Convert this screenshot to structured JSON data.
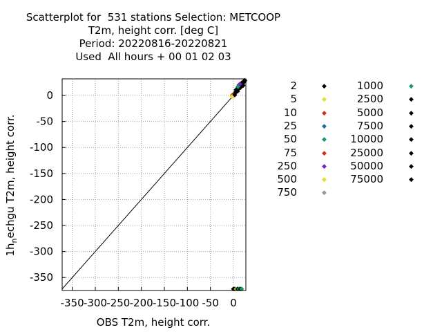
{
  "title_lines": [
    "Scatterplot for  531 stations Selection: METCOOP",
    "T2m, height corr. [deg C]",
    "Period: 20220816-20220821",
    "Used  All hours + 00 01 02 03"
  ],
  "chart_data": {
    "type": "scatter",
    "xlabel": "OBS T2m, height corr.",
    "ylabel_main": "1h",
    "ylabel_sub": "n",
    "ylabel_rest": "echgu T2m, height corr.",
    "xlim": [
      -372,
      27
    ],
    "ylim": [
      -375,
      32
    ],
    "x_ticks": [
      -350,
      -300,
      -250,
      -200,
      -150,
      -100,
      -50,
      0
    ],
    "x_tick_labels": [
      "-350",
      "-300",
      "-250",
      "-200",
      "-150",
      "-100",
      "-50",
      "0"
    ],
    "y_ticks": [
      0,
      -50,
      -100,
      -150,
      -200,
      -250,
      -300,
      -350
    ],
    "y_tick_labels": [
      "0",
      "-50",
      "-100",
      "-150",
      "-200",
      "-250",
      "-300",
      "-350"
    ],
    "grid": true,
    "diagonal": true,
    "legend_position": "right",
    "series": [
      {
        "name": "2",
        "color": "#000000"
      },
      {
        "name": "5",
        "color": "#e6e02a"
      },
      {
        "name": "10",
        "color": "#d22e1e"
      },
      {
        "name": "25",
        "color": "#1a6e96"
      },
      {
        "name": "50",
        "color": "#119c6c"
      },
      {
        "name": "75",
        "color": "#d22e1e"
      },
      {
        "name": "250",
        "color": "#7a1ec8"
      },
      {
        "name": "500",
        "color": "#e6e02a"
      },
      {
        "name": "750",
        "color": "#999999"
      },
      {
        "name": "1000",
        "color": "#119c6c"
      },
      {
        "name": "2500",
        "color": "#000000"
      },
      {
        "name": "5000",
        "color": "#000000"
      },
      {
        "name": "7500",
        "color": "#000000"
      },
      {
        "name": "10000",
        "color": "#000000"
      },
      {
        "name": "25000",
        "color": "#000000"
      },
      {
        "name": "50000",
        "color": "#000000"
      },
      {
        "name": "75000",
        "color": "#000000"
      }
    ],
    "points": [
      {
        "x": 0,
        "y": 0,
        "s": 2
      },
      {
        "x": 2,
        "y": 3,
        "s": 10
      },
      {
        "x": 4,
        "y": 5,
        "s": 0
      },
      {
        "x": 5,
        "y": 9,
        "s": 4
      },
      {
        "x": 6,
        "y": 7,
        "s": 0
      },
      {
        "x": 7,
        "y": 12,
        "s": 0
      },
      {
        "x": 8,
        "y": 10,
        "s": 0
      },
      {
        "x": 9,
        "y": 14,
        "s": 0
      },
      {
        "x": 10,
        "y": 12,
        "s": 0
      },
      {
        "x": 11,
        "y": 16,
        "s": 0
      },
      {
        "x": 12,
        "y": 14,
        "s": 0
      },
      {
        "x": 13,
        "y": 18,
        "s": 0
      },
      {
        "x": 14,
        "y": 16,
        "s": 0
      },
      {
        "x": 15,
        "y": 20,
        "s": 0
      },
      {
        "x": 16,
        "y": 18,
        "s": 3
      },
      {
        "x": 17,
        "y": 21,
        "s": 0
      },
      {
        "x": 18,
        "y": 19,
        "s": 0
      },
      {
        "x": 19,
        "y": 23,
        "s": 0
      },
      {
        "x": 20,
        "y": 21,
        "s": 0
      },
      {
        "x": 22,
        "y": 25,
        "s": 0
      },
      {
        "x": 24,
        "y": 27,
        "s": 0
      },
      {
        "x": 25,
        "y": 29,
        "s": 0
      },
      {
        "x": -2,
        "y": 1,
        "s": 5
      },
      {
        "x": -3,
        "y": -2,
        "s": 1
      },
      {
        "x": 3,
        "y": 1,
        "s": 0
      },
      {
        "x": 6,
        "y": 11,
        "s": 0
      },
      {
        "x": 9,
        "y": 8,
        "s": 0
      },
      {
        "x": 12,
        "y": 20,
        "s": 0
      },
      {
        "x": 15,
        "y": 15,
        "s": 0
      },
      {
        "x": 18,
        "y": 24,
        "s": 0
      },
      {
        "x": 21,
        "y": 19,
        "s": 0
      },
      {
        "x": 23,
        "y": 28,
        "s": 0
      },
      {
        "x": 10,
        "y": 17,
        "s": 4
      },
      {
        "x": 14,
        "y": 22,
        "s": 6
      },
      {
        "x": 0,
        "y": -372,
        "s": 0
      },
      {
        "x": 3,
        "y": -372,
        "s": 0
      },
      {
        "x": 6,
        "y": -372,
        "s": 1
      },
      {
        "x": 9,
        "y": -372,
        "s": 0
      },
      {
        "x": 12,
        "y": -372,
        "s": 4
      },
      {
        "x": 15,
        "y": -372,
        "s": 0
      },
      {
        "x": 18,
        "y": -372,
        "s": 4
      }
    ]
  }
}
